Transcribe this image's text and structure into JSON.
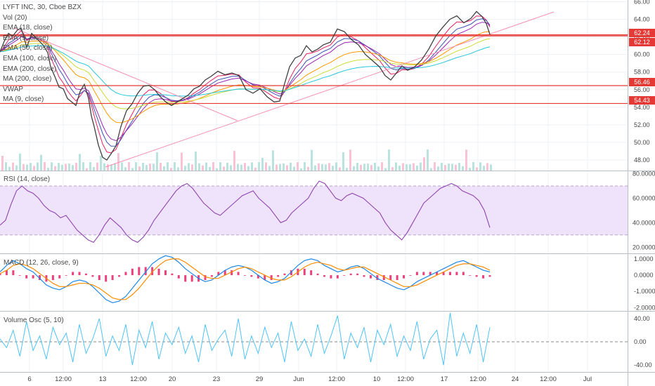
{
  "chart_data": {
    "type": "line",
    "symbol": "LYFT INC, 30, Cboe BZX",
    "overlays": [
      "Vol (20)",
      "EMA (18, close)",
      "EMA (9, close)",
      "EMA (50, close)",
      "EMA (100, close)",
      "EMA (200, close)",
      "MA (200, close)",
      "VWAP",
      "MA (9, close)"
    ],
    "x_tick_labels": [
      "6",
      "12:00",
      "13",
      "12:00",
      "20",
      "23",
      "29",
      "Jun",
      "12:00",
      "10",
      "12:00",
      "17",
      "12:00",
      "24",
      "12:00",
      "Jul"
    ],
    "price_axis": {
      "ticks": [
        "66.00",
        "64.00",
        "62.00",
        "60.00",
        "58.00",
        "56.00",
        "54.00",
        "52.00",
        "50.00",
        "48.00"
      ],
      "ylim": [
        46.8,
        66.2
      ]
    },
    "horizontal_levels": [
      {
        "value": 62.24,
        "label": "62.24",
        "color": "#e53935"
      },
      {
        "value": 62.12,
        "label": "62.12",
        "color": "#e53935"
      },
      {
        "value": 56.46,
        "label": "56.46",
        "color": "#e53935"
      },
      {
        "value": 54.43,
        "label": "54.43",
        "color": "#e53935"
      }
    ],
    "price_series": {
      "name": "close",
      "x": [
        0,
        6,
        12,
        18,
        25,
        30,
        34,
        38,
        45,
        55,
        62,
        68,
        72,
        78,
        84,
        90,
        96,
        102,
        108,
        114,
        120,
        126,
        130,
        134,
        140,
        146,
        152,
        158,
        165,
        172,
        180,
        188,
        196,
        204,
        212,
        220,
        228,
        236,
        244,
        252,
        260,
        268,
        276,
        284,
        292,
        300,
        310,
        320,
        330,
        340,
        350,
        360,
        370,
        380,
        390,
        398,
        405,
        412,
        420,
        428,
        436,
        444,
        452,
        460,
        470,
        480,
        490,
        500,
        510,
        520,
        530,
        540,
        548,
        556,
        564,
        572,
        580,
        590,
        600,
        610,
        620,
        630,
        640,
        650,
        660,
        670,
        678,
        686,
        692,
        697
      ],
      "values": [
        60.3,
        61.5,
        62.4,
        62.1,
        62.8,
        63.0,
        62.0,
        60.8,
        62.4,
        61.6,
        61.0,
        60.2,
        58.6,
        57.5,
        56.3,
        56.1,
        55.0,
        54.6,
        54.2,
        55.8,
        56.6,
        55.0,
        53.0,
        51.8,
        49.7,
        48.3,
        48.0,
        48.7,
        49.6,
        51.8,
        53.6,
        54.4,
        55.6,
        56.4,
        56.5,
        56.0,
        55.2,
        54.6,
        54.2,
        54.6,
        55.0,
        55.4,
        56.1,
        56.4,
        57.1,
        57.5,
        58.1,
        57.7,
        57.9,
        57.6,
        56.0,
        55.6,
        56.1,
        55.2,
        54.6,
        54.7,
        56.7,
        58.6,
        59.6,
        59.9,
        61.0,
        60.3,
        60.6,
        61.1,
        61.4,
        62.9,
        62.6,
        61.7,
        61.1,
        60.0,
        59.3,
        58.6,
        57.6,
        57.1,
        57.9,
        58.7,
        58.2,
        58.6,
        59.4,
        60.6,
        62.1,
        63.1,
        64.0,
        64.4,
        63.6,
        64.1,
        64.9,
        64.3,
        63.5,
        62.3
      ]
    },
    "rsi": {
      "name": "RSI (14, close)",
      "ticks": [
        "80.0000",
        "60.0000",
        "40.0000",
        "20.0000"
      ],
      "ylim": [
        15,
        82
      ],
      "band": [
        30,
        70
      ],
      "values": [
        38,
        42,
        55,
        66,
        70,
        66,
        64,
        60,
        54,
        50,
        48,
        44,
        46,
        40,
        34,
        30,
        26,
        24,
        30,
        38,
        44,
        40,
        36,
        30,
        26,
        24,
        28,
        34,
        42,
        48,
        54,
        60,
        66,
        70,
        72,
        68,
        62,
        56,
        52,
        48,
        46,
        50,
        54,
        58,
        62,
        64,
        66,
        60,
        56,
        52,
        46,
        40,
        42,
        48,
        52,
        56,
        60,
        68,
        74,
        72,
        66,
        60,
        58,
        62,
        64,
        62,
        60,
        56,
        52,
        48,
        40,
        34,
        30,
        26,
        32,
        40,
        48,
        56,
        60,
        64,
        68,
        70,
        72,
        70,
        66,
        64,
        62,
        58,
        50,
        36
      ]
    },
    "macd": {
      "name": "MACD (12, 26, close, 9)",
      "ticks": [
        "1.0000",
        "0.0000",
        "-1.0000",
        "-2.0000"
      ],
      "ylim": [
        -2.2,
        1.3
      ],
      "macd_line": [
        0.2,
        0.6,
        0.9,
        0.7,
        0.4,
        0.2,
        -0.2,
        -0.6,
        -0.8,
        -0.9,
        -0.7,
        -0.4,
        -0.3,
        -0.4,
        -0.7,
        -1.1,
        -1.5,
        -1.7,
        -1.6,
        -1.3,
        -0.8,
        -0.3,
        0.2,
        0.7,
        1.0,
        1.2,
        1.1,
        0.8,
        0.4,
        0.1,
        -0.2,
        -0.4,
        -0.3,
        0.0,
        0.3,
        0.5,
        0.6,
        0.5,
        0.3,
        0.0,
        -0.3,
        -0.5,
        -0.4,
        -0.2,
        0.2,
        0.6,
        0.9,
        1.0,
        0.9,
        0.6,
        0.4,
        0.2,
        0.3,
        0.5,
        0.6,
        0.4,
        0.1,
        -0.2,
        -0.4,
        -0.6,
        -0.8,
        -0.9,
        -0.7,
        -0.4,
        -0.2,
        0.0,
        0.2,
        0.4,
        0.6,
        0.8,
        0.9,
        0.7,
        0.5,
        0.3,
        0.2
      ],
      "signal_line": [
        0.1,
        0.3,
        0.6,
        0.7,
        0.6,
        0.4,
        0.1,
        -0.2,
        -0.5,
        -0.7,
        -0.7,
        -0.6,
        -0.5,
        -0.5,
        -0.6,
        -0.8,
        -1.1,
        -1.4,
        -1.5,
        -1.5,
        -1.2,
        -0.8,
        -0.3,
        0.2,
        0.6,
        0.9,
        1.0,
        1.0,
        0.8,
        0.5,
        0.2,
        -0.1,
        -0.2,
        -0.2,
        0.0,
        0.2,
        0.4,
        0.5,
        0.4,
        0.2,
        0.0,
        -0.2,
        -0.3,
        -0.3,
        -0.1,
        0.2,
        0.5,
        0.7,
        0.8,
        0.7,
        0.6,
        0.4,
        0.3,
        0.4,
        0.5,
        0.5,
        0.3,
        0.1,
        -0.1,
        -0.3,
        -0.5,
        -0.7,
        -0.7,
        -0.6,
        -0.4,
        -0.2,
        0.0,
        0.2,
        0.4,
        0.6,
        0.7,
        0.7,
        0.6,
        0.5,
        0.3
      ]
    },
    "volume_osc": {
      "name": "Volume Osc (5, 10)",
      "ticks": [
        "40.00",
        "0.00",
        "-40.00"
      ],
      "ylim": [
        -52,
        52
      ],
      "values": [
        5,
        -10,
        20,
        -25,
        35,
        -15,
        10,
        -30,
        25,
        -5,
        15,
        -35,
        30,
        -20,
        5,
        40,
        -25,
        10,
        -15,
        30,
        -40,
        20,
        -10,
        35,
        -30,
        15,
        -5,
        25,
        -20,
        10,
        -35,
        30,
        -15,
        5,
        20,
        -25,
        40,
        -30,
        10,
        -20,
        25,
        -10,
        15,
        -35,
        35,
        -15,
        5,
        -25,
        30,
        -20,
        10,
        45,
        -30,
        15,
        -10,
        25,
        -35,
        20,
        -5,
        30,
        -25,
        10,
        -15,
        35,
        -30,
        5,
        20,
        -40,
        50,
        -25,
        15,
        -20,
        30,
        -35,
        25
      ]
    }
  }
}
